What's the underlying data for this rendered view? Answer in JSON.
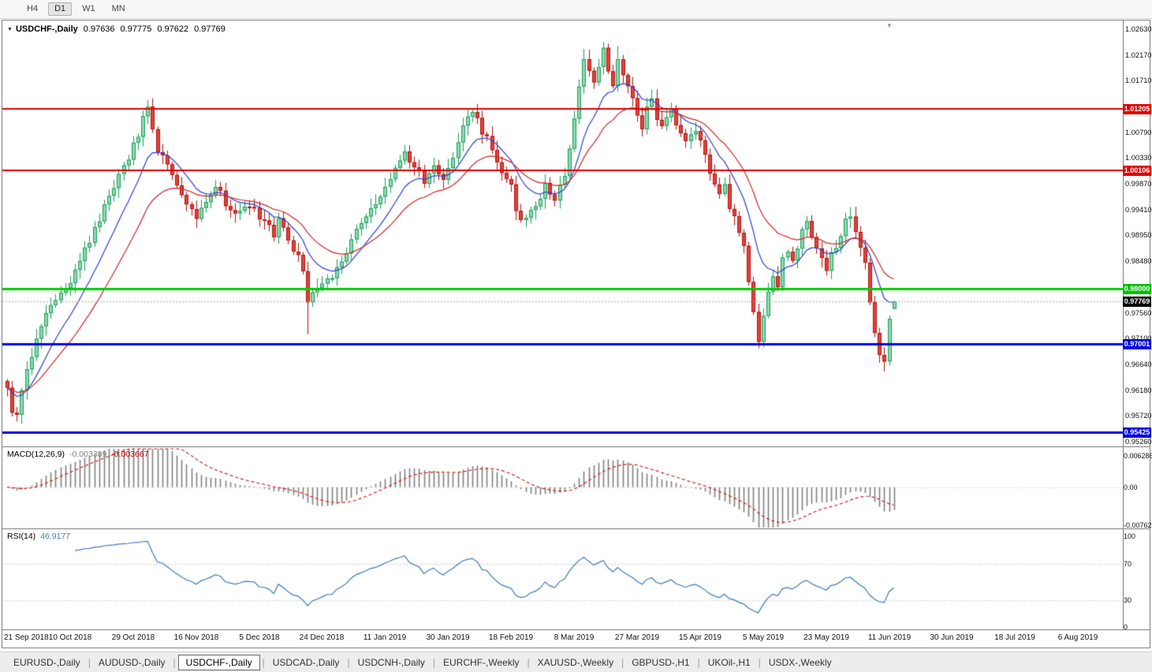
{
  "toolbar": {
    "timeframes": [
      {
        "label": "H4",
        "active": false
      },
      {
        "label": "D1",
        "active": true
      },
      {
        "label": "W1",
        "active": false
      },
      {
        "label": "MN",
        "active": false
      }
    ]
  },
  "icons": {
    "chart_menu_icon": "▼",
    "shift_marker_icon": "▼"
  },
  "chart": {
    "symbol_label": "USDCHF-,Daily",
    "ohlc": {
      "open": "0.97636",
      "high": "0.97775",
      "low": "0.97622",
      "close": "0.97769"
    }
  },
  "price_axis": {
    "ticks": [
      {
        "label": "1.02630",
        "price": 1.0263
      },
      {
        "label": "1.02170",
        "price": 1.0217
      },
      {
        "label": "1.01710",
        "price": 1.0171
      },
      {
        "label": "1.00790",
        "price": 1.0079
      },
      {
        "label": "1.00330",
        "price": 1.0033
      },
      {
        "label": "0.99870",
        "price": 0.9987
      },
      {
        "label": "0.99410",
        "price": 0.9941
      },
      {
        "label": "0.98950",
        "price": 0.9895
      },
      {
        "label": "0.98480",
        "price": 0.9848
      },
      {
        "label": "0.97560",
        "price": 0.9756
      },
      {
        "label": "0.97100",
        "price": 0.971
      },
      {
        "label": "0.96640",
        "price": 0.9664
      },
      {
        "label": "0.96180",
        "price": 0.9618
      },
      {
        "label": "0.95720",
        "price": 0.9572
      },
      {
        "label": "0.95260",
        "price": 0.9526
      }
    ],
    "levels": [
      {
        "label": "1.01205",
        "price": 1.01205,
        "color": "#e00000"
      },
      {
        "label": "1.00106",
        "price": 1.00106,
        "color": "#e00000"
      },
      {
        "label": "0.98000",
        "price": 0.98,
        "color": "#00c000"
      },
      {
        "label": "0.97001",
        "price": 0.97001,
        "color": "#0000e0"
      },
      {
        "label": "0.95425",
        "price": 0.95425,
        "color": "#0000e0"
      }
    ],
    "current": {
      "label": "0.97769",
      "price": 0.97769,
      "bg": "#000000"
    }
  },
  "macd_panel": {
    "name": "MACD(12,26,9)",
    "value_main": "-0.003389",
    "value_signal": "-0.003667",
    "axis": [
      {
        "label": "0.006286",
        "value": 0.006286
      },
      {
        "label": "0.00",
        "value": 0
      },
      {
        "label": "-0.00762",
        "value": -0.00762
      }
    ]
  },
  "rsi_panel": {
    "name": "RSI(14)",
    "value": "46.9177",
    "axis": [
      {
        "label": "100",
        "value": 100
      },
      {
        "label": "70",
        "value": 70
      },
      {
        "label": "30",
        "value": 30
      },
      {
        "label": "0",
        "value": 0
      }
    ]
  },
  "date_axis": [
    "21 Sep 2018",
    "10 Oct 2018",
    "29 Oct 2018",
    "16 Nov 2018",
    "5 Dec 2018",
    "24 Dec 2018",
    "11 Jan 2019",
    "30 Jan 2019",
    "18 Feb 2019",
    "8 Mar 2019",
    "27 Mar 2019",
    "15 Apr 2019",
    "5 May 2019",
    "23 May 2019",
    "11 Jun 2019",
    "30 Jun 2019",
    "18 Jul 2019",
    "6 Aug 2019"
  ],
  "tabs": [
    {
      "label": "EURUSD-,Daily",
      "active": false
    },
    {
      "label": "AUDUSD-,Daily",
      "active": false
    },
    {
      "label": "USDCHF-,Daily",
      "active": true
    },
    {
      "label": "USDCAD-,Daily",
      "active": false
    },
    {
      "label": "USDCNH-,Daily",
      "active": false
    },
    {
      "label": "EURCHF-,Weekly",
      "active": false
    },
    {
      "label": "XAUUSD-,Weekly",
      "active": false
    },
    {
      "label": "GBPUSD-,H1",
      "active": false
    },
    {
      "label": "UKOil-,H1",
      "active": false
    },
    {
      "label": "USDX-,Weekly",
      "active": false
    }
  ],
  "colors": {
    "up_fill": "#8fd7ae",
    "up_border": "#17a05a",
    "down_fill": "#e5413a",
    "down_border": "#b01510",
    "current_line": "#b0b0b0"
  },
  "chart_data": {
    "type": "candlestick",
    "symbol": "USDCHF",
    "timeframe": "Daily",
    "title": "USDCHF-,Daily 0.97636 0.97775 0.97622 0.97769",
    "y_axis": {
      "min": 0.9526,
      "max": 1.0263
    },
    "bars_count": 184,
    "bars_per_grid": 13,
    "noise": 0.0016,
    "price_anchors": [
      [
        0,
        0.963
      ],
      [
        1,
        0.9585
      ],
      [
        2,
        0.9575
      ],
      [
        3,
        0.9615
      ],
      [
        4,
        0.9655
      ],
      [
        6,
        0.9715
      ],
      [
        8,
        0.9755
      ],
      [
        10,
        0.978
      ],
      [
        12,
        0.98
      ],
      [
        14,
        0.983
      ],
      [
        16,
        0.9865
      ],
      [
        18,
        0.9905
      ],
      [
        20,
        0.9945
      ],
      [
        22,
        0.998
      ],
      [
        24,
        1.0015
      ],
      [
        26,
        1.0055
      ],
      [
        28,
        1.01
      ],
      [
        29,
        1.0122
      ],
      [
        30,
        1.0085
      ],
      [
        31,
        1.005
      ],
      [
        33,
        1.0015
      ],
      [
        35,
        0.9985
      ],
      [
        37,
        0.9945
      ],
      [
        39,
        0.9928
      ],
      [
        41,
        0.996
      ],
      [
        43,
        0.9982
      ],
      [
        45,
        0.9952
      ],
      [
        47,
        0.9932
      ],
      [
        49,
        0.9952
      ],
      [
        51,
        0.9942
      ],
      [
        53,
        0.9918
      ],
      [
        55,
        0.9898
      ],
      [
        56,
        0.9928
      ],
      [
        58,
        0.9888
      ],
      [
        60,
        0.9852
      ],
      [
        61,
        0.9828
      ],
      [
        62,
        0.9768
      ],
      [
        63,
        0.9788
      ],
      [
        65,
        0.9802
      ],
      [
        67,
        0.9822
      ],
      [
        69,
        0.9852
      ],
      [
        71,
        0.9888
      ],
      [
        73,
        0.9918
      ],
      [
        75,
        0.9942
      ],
      [
        77,
        0.9962
      ],
      [
        79,
        0.9992
      ],
      [
        81,
        1.0028
      ],
      [
        82,
        1.0048
      ],
      [
        84,
        1.0018
      ],
      [
        86,
        0.9992
      ],
      [
        88,
        1.0012
      ],
      [
        90,
        1.0002
      ],
      [
        92,
        1.0028
      ],
      [
        94,
        1.0088
      ],
      [
        95,
        1.0112
      ],
      [
        96,
        1.0122
      ],
      [
        98,
        1.0082
      ],
      [
        100,
        1.0048
      ],
      [
        102,
        1.0012
      ],
      [
        104,
        0.9988
      ],
      [
        105,
        0.9932
      ],
      [
        107,
        0.9918
      ],
      [
        109,
        0.9952
      ],
      [
        111,
        0.9982
      ],
      [
        113,
        0.9962
      ],
      [
        115,
        0.9998
      ],
      [
        116,
        1.0048
      ],
      [
        117,
        1.0108
      ],
      [
        118,
        1.0168
      ],
      [
        119,
        1.0212
      ],
      [
        120,
        1.0182
      ],
      [
        121,
        1.0162
      ],
      [
        122,
        1.0198
      ],
      [
        123,
        1.0222
      ],
      [
        124,
        1.0188
      ],
      [
        125,
        1.0168
      ],
      [
        126,
        1.0202
      ],
      [
        127,
        1.0188
      ],
      [
        128,
        1.0158
      ],
      [
        129,
        1.0142
      ],
      [
        130,
        1.0112
      ],
      [
        131,
        1.0092
      ],
      [
        132,
        1.0118
      ],
      [
        133,
        1.0138
      ],
      [
        134,
        1.0108
      ],
      [
        135,
        1.0092
      ],
      [
        136,
        1.0112
      ],
      [
        137,
        1.0118
      ],
      [
        138,
        1.0088
      ],
      [
        139,
        1.0072
      ],
      [
        140,
        1.0058
      ],
      [
        141,
        1.0068
      ],
      [
        142,
        1.0082
      ],
      [
        143,
        1.0058
      ],
      [
        144,
        1.0038
      ],
      [
        145,
        1.0008
      ],
      [
        146,
        0.9988
      ],
      [
        147,
        0.9962
      ],
      [
        148,
        0.9982
      ],
      [
        149,
        0.9948
      ],
      [
        150,
        0.9928
      ],
      [
        151,
        0.9898
      ],
      [
        152,
        0.9868
      ],
      [
        153,
        0.9818
      ],
      [
        154,
        0.9758
      ],
      [
        155,
        0.9712
      ],
      [
        156,
        0.9758
      ],
      [
        157,
        0.9798
      ],
      [
        158,
        0.9828
      ],
      [
        159,
        0.9808
      ],
      [
        160,
        0.9848
      ],
      [
        161,
        0.9868
      ],
      [
        162,
        0.9852
      ],
      [
        163,
        0.9878
      ],
      [
        164,
        0.9898
      ],
      [
        165,
        0.9918
      ],
      [
        166,
        0.9892
      ],
      [
        167,
        0.9868
      ],
      [
        168,
        0.9848
      ],
      [
        169,
        0.9828
      ],
      [
        170,
        0.9858
      ],
      [
        171,
        0.9878
      ],
      [
        172,
        0.9898
      ],
      [
        173,
        0.9918
      ],
      [
        174,
        0.9932
      ],
      [
        175,
        0.9908
      ],
      [
        176,
        0.9878
      ],
      [
        177,
        0.9838
      ],
      [
        178,
        0.9778
      ],
      [
        179,
        0.9718
      ],
      [
        180,
        0.9688
      ],
      [
        181,
        0.9662
      ],
      [
        182,
        0.9738
      ],
      [
        183,
        0.97769
      ]
    ],
    "wick_overrides": {
      "2": {
        "low": 0.9562
      },
      "62": {
        "low": 0.9718
      },
      "119": {
        "high": 1.0228
      },
      "123": {
        "high": 1.024
      },
      "126": {
        "high": 1.0233
      },
      "155": {
        "low": 0.9701
      },
      "181": {
        "low": 0.9656
      }
    },
    "final_ohlc": [
      0.97636,
      0.97775,
      0.97622,
      0.97769
    ],
    "horizontal_lines": [
      {
        "price": 1.01205,
        "color": "#e00000",
        "width": 2
      },
      {
        "price": 1.00106,
        "color": "#e00000",
        "width": 2
      },
      {
        "price": 0.98,
        "color": "#00cc00",
        "width": 3
      },
      {
        "price": 0.97001,
        "color": "#0000e0",
        "width": 3
      },
      {
        "price": 0.95425,
        "color": "#0000e0",
        "width": 3
      }
    ],
    "current_price": 0.97769,
    "moving_averages": [
      {
        "period": 10,
        "type": "ema",
        "color": "#2b3fd6"
      },
      {
        "period": 21,
        "type": "ema",
        "color": "#d02828"
      }
    ],
    "macd": {
      "fast": 12,
      "slow": 26,
      "signal": 9,
      "axis_max": 0.00787,
      "axis_min": -0.00825,
      "hist_color": "#808080",
      "signal_color": "#cc1111"
    },
    "rsi": {
      "period": 14,
      "color": "#3b7bbf",
      "levels": [
        70,
        30
      ]
    }
  }
}
